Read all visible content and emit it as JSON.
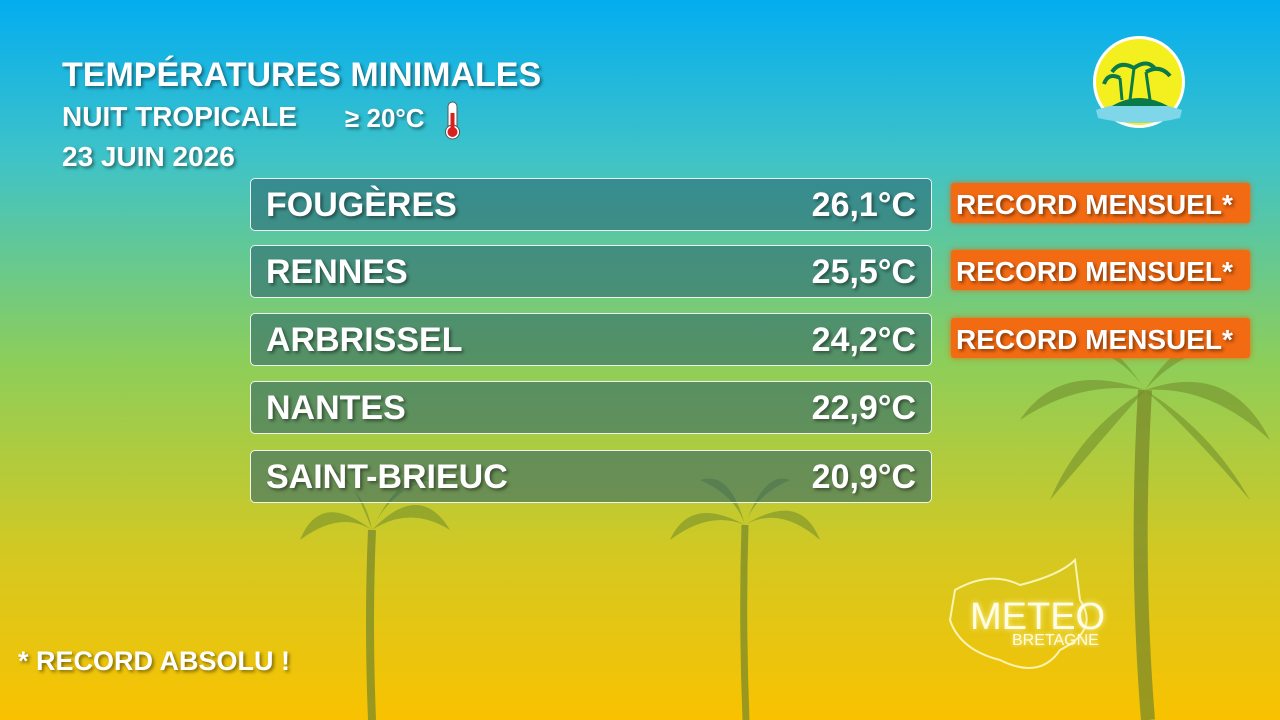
{
  "header": {
    "title": "TEMPÉRATURES MINIMALES",
    "subtitle": "NUIT TROPICALE",
    "threshold": "≥ 20°C",
    "date": "23 JUIN 2026"
  },
  "table": {
    "rows": [
      {
        "station": "FOUGÈRES",
        "temperature": "26,1°C",
        "badge": "RECORD MENSUEL*"
      },
      {
        "station": "RENNES",
        "temperature": "25,5°C",
        "badge": "RECORD MENSUEL*"
      },
      {
        "station": "ARBRISSEL",
        "temperature": "24,2°C",
        "badge": "RECORD MENSUEL*"
      },
      {
        "station": "NANTES",
        "temperature": "22,9°C"
      },
      {
        "station": "SAINT-BRIEUC",
        "temperature": "20,9°C"
      }
    ]
  },
  "footnote": "* RECORD ABSOLU !",
  "logo": {
    "line1": "METEO",
    "line2": "BRETAGNE"
  }
}
